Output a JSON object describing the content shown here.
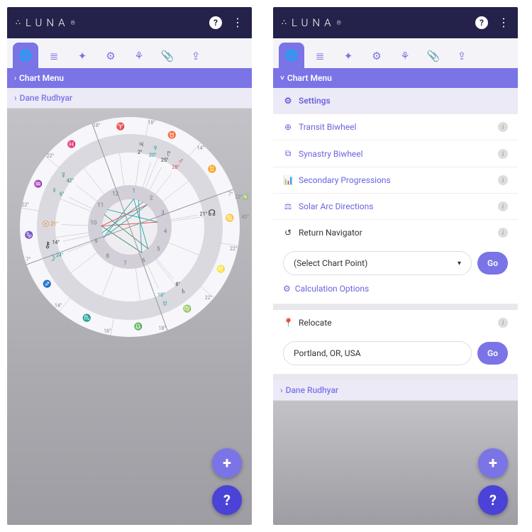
{
  "brand": "LUNA",
  "toolbar_icons": [
    "globe",
    "layers",
    "compass",
    "gear",
    "tree",
    "attach",
    "share"
  ],
  "chart_menu_label": "Chart Menu",
  "name_label": "Dane Rudhyar",
  "fab_add": "+",
  "fab_help": "?",
  "left": {
    "zodiac_glyphs": [
      "♈",
      "♉",
      "♊",
      "♋",
      "♌",
      "♍",
      "♎",
      "♏",
      "♐",
      "♑",
      "♒",
      "♓"
    ],
    "zodiac_colors": [
      "#d34242",
      "#2a8a5a",
      "#2a8a5a",
      "#169a9a",
      "#d34242",
      "#2a8a5a",
      "#2a8a5a",
      "#169a9a",
      "#d34242",
      "#2a8a5a",
      "#2a8a5a",
      "#169a9a"
    ],
    "cusp_degrees": [
      "18°",
      "18°",
      "14°",
      "7°",
      "22°",
      "22°",
      "18°",
      "18°",
      "14°",
      "7°",
      "22°",
      "22°"
    ],
    "planets": [
      {
        "glyph": "☊",
        "lbl": "21°",
        "angle": 80,
        "color": "#333"
      },
      {
        "glyph": "♄",
        "lbl": "8°",
        "angle": 140,
        "color": "#333"
      },
      {
        "glyph": "♅",
        "lbl": "18°",
        "angle": 155,
        "color": "#169a9a"
      },
      {
        "glyph": "☽",
        "lbl": "24°",
        "angle": 248,
        "color": "#169a9a"
      },
      {
        "glyph": "⚷",
        "lbl": "14°",
        "angle": 258,
        "color": "#333"
      },
      {
        "glyph": "☉",
        "lbl": "21°",
        "angle": 272,
        "color": "#e67e22"
      },
      {
        "glyph": "♀",
        "lbl": "6°",
        "angle": 296,
        "color": "#2a8a5a"
      },
      {
        "glyph": "☿",
        "lbl": "42°",
        "angle": 308,
        "color": "#2a8a5a"
      },
      {
        "glyph": "♃",
        "lbl": "2°",
        "angle": 8,
        "color": "#333"
      },
      {
        "glyph": "♆",
        "lbl": "20°",
        "angle": 18,
        "color": "#169a9a"
      },
      {
        "glyph": "♇",
        "lbl": "25°",
        "angle": 28,
        "color": "#333"
      },
      {
        "glyph": "♂",
        "lbl": "28°",
        "angle": 38,
        "color": "#d34242"
      }
    ],
    "top_small": [
      "22°♍",
      "42°"
    ],
    "aspects": [
      {
        "a": 80,
        "b": 272,
        "c": "#d34242"
      },
      {
        "a": 140,
        "b": 8,
        "c": "#169a9a"
      },
      {
        "a": 155,
        "b": 18,
        "c": "#169a9a"
      },
      {
        "a": 248,
        "b": 38,
        "c": "#169a9a"
      },
      {
        "a": 258,
        "b": 28,
        "c": "#169a9a"
      },
      {
        "a": 272,
        "b": 155,
        "c": "#2a8a5a"
      },
      {
        "a": 296,
        "b": 140,
        "c": "#2a8a5a"
      },
      {
        "a": 8,
        "b": 248,
        "c": "#169a9a"
      },
      {
        "a": 308,
        "b": 80,
        "c": "#169a9a"
      },
      {
        "a": 272,
        "b": 38,
        "c": "#d34242"
      }
    ]
  },
  "right": {
    "settings": "Settings",
    "items": [
      {
        "ico": "⊕",
        "label": "Transit Biwheel"
      },
      {
        "ico": "⧉",
        "label": "Synastry Biwheel"
      },
      {
        "ico": "📊",
        "label": "Secondary Progressions"
      },
      {
        "ico": "⚖",
        "label": "Solar Arc Directions"
      }
    ],
    "return_nav": "Return Navigator",
    "select_placeholder": "(Select Chart Point)",
    "go": "Go",
    "calc_opts": "Calculation Options",
    "relocate": "Relocate",
    "relocate_value": "Portland, OR, USA"
  }
}
